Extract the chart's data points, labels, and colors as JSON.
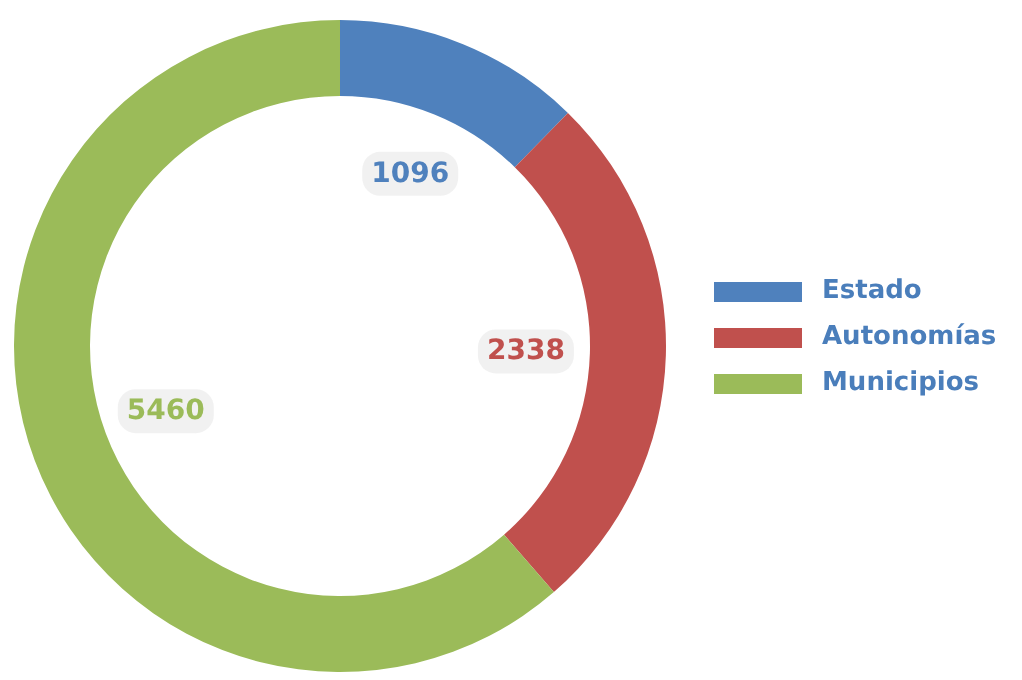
{
  "chart_data": {
    "type": "donut",
    "categories": [
      "Estado",
      "Autonomías",
      "Municipios"
    ],
    "values": [
      1096,
      2338,
      5460
    ],
    "colors": [
      "#4f81bd",
      "#c0504d",
      "#9bbb59"
    ],
    "data_labels": true,
    "legend": "right"
  }
}
